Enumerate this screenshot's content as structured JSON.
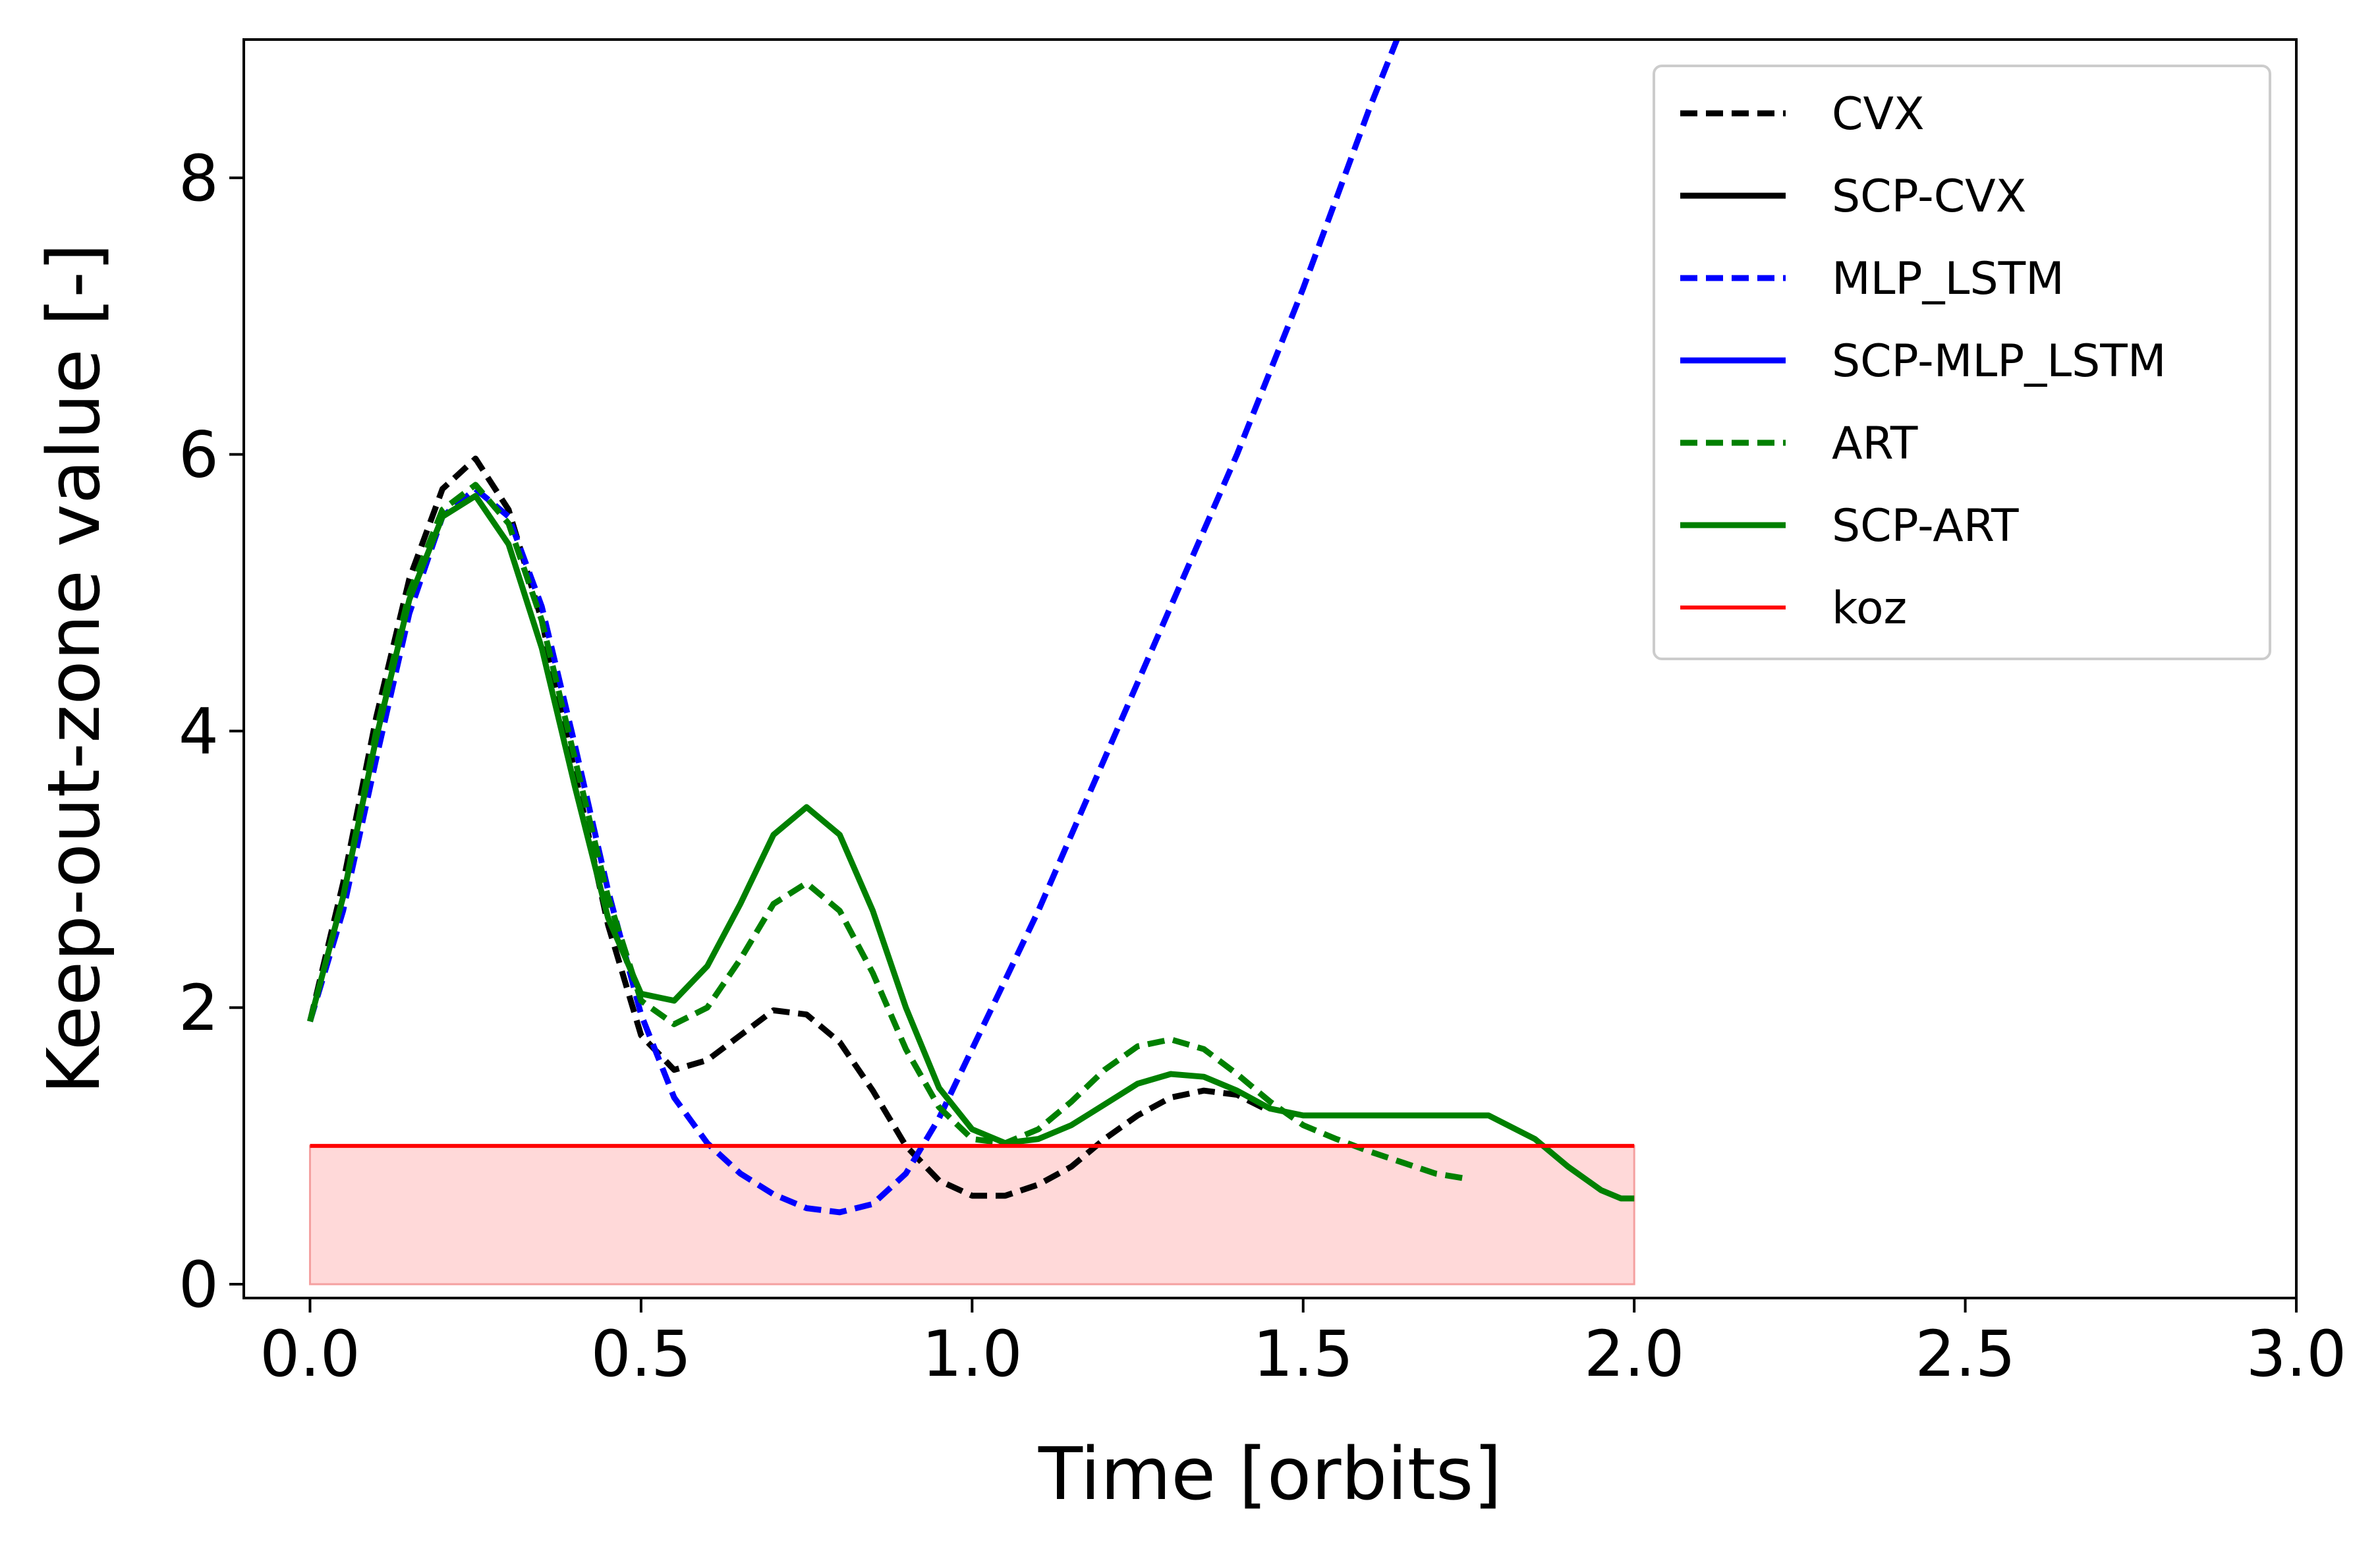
{
  "chart_data": {
    "type": "line",
    "title": "",
    "xlabel": "Time [orbits]",
    "ylabel": "Keep-out-zone value [-]",
    "xlim": [
      -0.1,
      3.0
    ],
    "ylim": [
      -0.1,
      9.0
    ],
    "xticks": [
      0.0,
      0.5,
      1.0,
      1.5,
      2.0,
      2.5,
      3.0
    ],
    "xtick_labels": [
      "0.0",
      "0.5",
      "1.0",
      "1.5",
      "2.0",
      "2.5",
      "3.0"
    ],
    "yticks": [
      0,
      2,
      4,
      6,
      8
    ],
    "ytick_labels": [
      "0",
      "2",
      "4",
      "6",
      "8"
    ],
    "grid": false,
    "legend_position": "top-right",
    "series": [
      {
        "name": "CVX",
        "color": "#000000",
        "dash": "dashed",
        "points": [
          [
            0.0,
            1.9
          ],
          [
            0.05,
            2.9
          ],
          [
            0.1,
            4.1
          ],
          [
            0.15,
            5.1
          ],
          [
            0.2,
            5.75
          ],
          [
            0.25,
            5.97
          ],
          [
            0.3,
            5.6
          ],
          [
            0.35,
            4.8
          ],
          [
            0.4,
            3.7
          ],
          [
            0.45,
            2.6
          ],
          [
            0.5,
            1.8
          ],
          [
            0.55,
            1.55
          ],
          [
            0.6,
            1.62
          ],
          [
            0.65,
            1.8
          ],
          [
            0.7,
            1.98
          ],
          [
            0.75,
            1.95
          ],
          [
            0.8,
            1.75
          ],
          [
            0.85,
            1.4
          ],
          [
            0.9,
            1.0
          ],
          [
            0.95,
            0.75
          ],
          [
            1.0,
            0.64
          ],
          [
            1.05,
            0.64
          ],
          [
            1.1,
            0.72
          ],
          [
            1.15,
            0.85
          ],
          [
            1.2,
            1.05
          ],
          [
            1.25,
            1.22
          ],
          [
            1.3,
            1.35
          ],
          [
            1.35,
            1.4
          ],
          [
            1.4,
            1.37
          ],
          [
            1.45,
            1.25
          ]
        ]
      },
      {
        "name": "SCP-CVX",
        "color": "#000000",
        "dash": "solid",
        "points": []
      },
      {
        "name": "MLP_LSTM",
        "color": "#0000ff",
        "dash": "dashed",
        "points": [
          [
            0.0,
            1.9
          ],
          [
            0.05,
            2.7
          ],
          [
            0.1,
            3.8
          ],
          [
            0.15,
            4.85
          ],
          [
            0.2,
            5.55
          ],
          [
            0.25,
            5.75
          ],
          [
            0.3,
            5.55
          ],
          [
            0.35,
            4.9
          ],
          [
            0.4,
            3.9
          ],
          [
            0.45,
            2.85
          ],
          [
            0.5,
            1.95
          ],
          [
            0.55,
            1.35
          ],
          [
            0.6,
            1.02
          ],
          [
            0.65,
            0.8
          ],
          [
            0.7,
            0.65
          ],
          [
            0.75,
            0.55
          ],
          [
            0.8,
            0.52
          ],
          [
            0.85,
            0.58
          ],
          [
            0.9,
            0.8
          ],
          [
            0.95,
            1.2
          ],
          [
            1.0,
            1.7
          ],
          [
            1.05,
            2.2
          ],
          [
            1.1,
            2.7
          ],
          [
            1.15,
            3.25
          ],
          [
            1.2,
            3.8
          ],
          [
            1.25,
            4.35
          ],
          [
            1.3,
            4.9
          ],
          [
            1.35,
            5.45
          ],
          [
            1.4,
            6.0
          ],
          [
            1.45,
            6.6
          ],
          [
            1.5,
            7.2
          ],
          [
            1.55,
            7.85
          ],
          [
            1.6,
            8.5
          ],
          [
            1.65,
            9.1
          ]
        ]
      },
      {
        "name": "SCP-MLP_LSTM",
        "color": "#0000ff",
        "dash": "solid",
        "points": []
      },
      {
        "name": "ART",
        "color": "#008000",
        "dash": "dashed",
        "points": [
          [
            0.0,
            1.9
          ],
          [
            0.05,
            2.8
          ],
          [
            0.1,
            4.0
          ],
          [
            0.15,
            5.0
          ],
          [
            0.2,
            5.6
          ],
          [
            0.25,
            5.78
          ],
          [
            0.3,
            5.5
          ],
          [
            0.35,
            4.8
          ],
          [
            0.4,
            3.8
          ],
          [
            0.45,
            2.8
          ],
          [
            0.5,
            2.05
          ],
          [
            0.55,
            1.88
          ],
          [
            0.6,
            2.0
          ],
          [
            0.65,
            2.35
          ],
          [
            0.7,
            2.75
          ],
          [
            0.75,
            2.9
          ],
          [
            0.8,
            2.7
          ],
          [
            0.85,
            2.25
          ],
          [
            0.9,
            1.7
          ],
          [
            0.95,
            1.28
          ],
          [
            1.0,
            1.05
          ],
          [
            1.05,
            1.02
          ],
          [
            1.1,
            1.12
          ],
          [
            1.15,
            1.32
          ],
          [
            1.2,
            1.55
          ],
          [
            1.25,
            1.72
          ],
          [
            1.3,
            1.77
          ],
          [
            1.35,
            1.7
          ],
          [
            1.4,
            1.52
          ],
          [
            1.45,
            1.32
          ],
          [
            1.5,
            1.15
          ],
          [
            1.55,
            1.05
          ],
          [
            1.6,
            0.96
          ],
          [
            1.65,
            0.88
          ],
          [
            1.7,
            0.8
          ],
          [
            1.75,
            0.76
          ]
        ]
      },
      {
        "name": "SCP-ART",
        "color": "#008000",
        "dash": "solid",
        "points": [
          [
            0.0,
            1.9
          ],
          [
            0.05,
            2.8
          ],
          [
            0.1,
            3.95
          ],
          [
            0.15,
            4.95
          ],
          [
            0.2,
            5.55
          ],
          [
            0.25,
            5.7
          ],
          [
            0.3,
            5.35
          ],
          [
            0.35,
            4.6
          ],
          [
            0.4,
            3.6
          ],
          [
            0.45,
            2.65
          ],
          [
            0.5,
            2.1
          ],
          [
            0.55,
            2.05
          ],
          [
            0.6,
            2.3
          ],
          [
            0.65,
            2.75
          ],
          [
            0.7,
            3.25
          ],
          [
            0.75,
            3.45
          ],
          [
            0.8,
            3.25
          ],
          [
            0.85,
            2.7
          ],
          [
            0.9,
            2.0
          ],
          [
            0.95,
            1.42
          ],
          [
            1.0,
            1.12
          ],
          [
            1.05,
            1.02
          ],
          [
            1.1,
            1.05
          ],
          [
            1.15,
            1.15
          ],
          [
            1.2,
            1.3
          ],
          [
            1.25,
            1.45
          ],
          [
            1.3,
            1.52
          ],
          [
            1.35,
            1.5
          ],
          [
            1.4,
            1.4
          ],
          [
            1.45,
            1.27
          ],
          [
            1.5,
            1.22
          ],
          [
            1.6,
            1.22
          ],
          [
            1.7,
            1.22
          ],
          [
            1.78,
            1.22
          ],
          [
            1.85,
            1.05
          ],
          [
            1.9,
            0.85
          ],
          [
            1.95,
            0.68
          ],
          [
            1.98,
            0.62
          ],
          [
            2.0,
            0.62
          ]
        ]
      },
      {
        "name": "koz",
        "color": "#ff0000",
        "dash": "solid",
        "points": [
          [
            0.0,
            1.0
          ],
          [
            2.0,
            1.0
          ]
        ]
      }
    ],
    "koz_fill": {
      "from": 0.0,
      "to": 2.0,
      "low": 0.0,
      "high": 1.0,
      "color": "#ffcccc"
    }
  }
}
